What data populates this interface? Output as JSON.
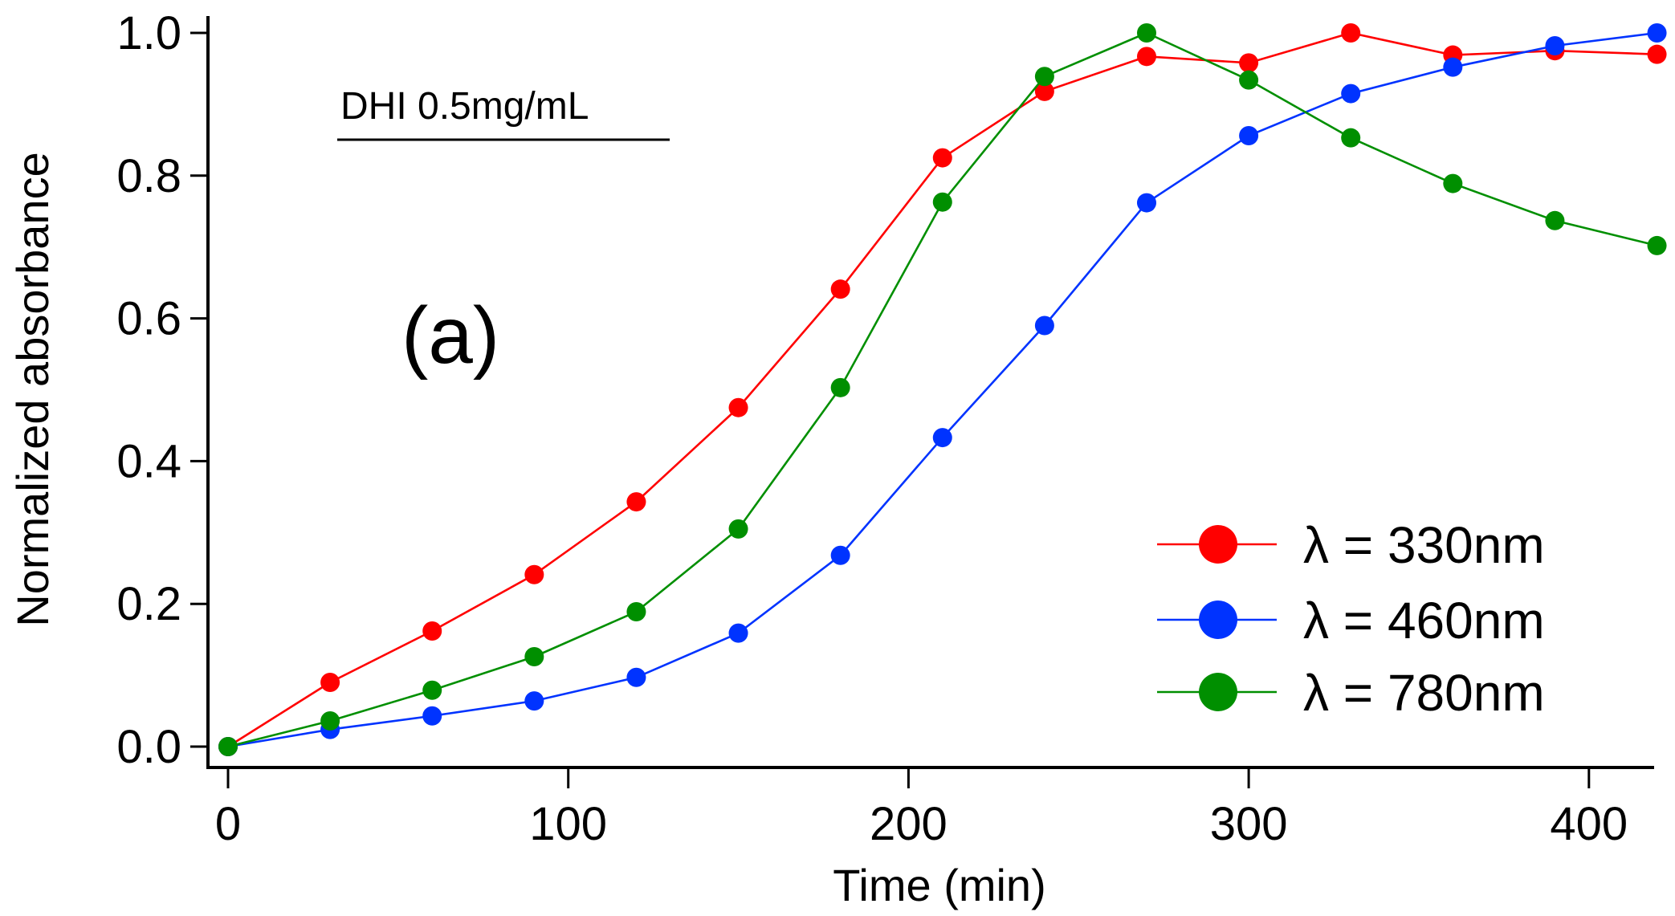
{
  "chart_data": {
    "type": "line",
    "title": "",
    "xlabel": "Time (min)",
    "ylabel": "Normalized absorbance",
    "xlim": [
      0,
      420
    ],
    "ylim": [
      0,
      1.0
    ],
    "xticks": [
      0,
      100,
      200,
      300,
      400
    ],
    "xtick_labels": [
      "0",
      "100",
      "200",
      "300",
      "400"
    ],
    "yticks": [
      0,
      0.2,
      0.4,
      0.6,
      0.8,
      1.0
    ],
    "ytick_labels": [
      "0.0",
      "0.2",
      "0.4",
      "0.6",
      "0.8",
      "1.0"
    ],
    "grid": false,
    "legend_position": "bottom-right",
    "annotations": {
      "sample": "DHI 0.5mg/mL",
      "panel": "(a)"
    },
    "x": [
      0,
      30,
      60,
      90,
      120,
      150,
      180,
      210,
      240,
      270,
      300,
      330,
      360,
      390,
      420
    ],
    "series": [
      {
        "name": "λ = 330nm",
        "color": "#ff0000",
        "values": [
          0,
          0.09,
          0.162,
          0.241,
          0.343,
          0.475,
          0.641,
          0.825,
          0.918,
          0.967,
          0.958,
          1.0,
          0.969,
          0.975,
          0.97
        ]
      },
      {
        "name": "λ = 460nm",
        "color": "#0033ff",
        "values": [
          0,
          0.024,
          0.043,
          0.064,
          0.097,
          0.159,
          0.268,
          0.433,
          0.59,
          0.762,
          0.856,
          0.915,
          0.952,
          0.982,
          1.0
        ]
      },
      {
        "name": "λ = 780nm",
        "color": "#008f00",
        "values": [
          0,
          0.036,
          0.079,
          0.126,
          0.189,
          0.305,
          0.503,
          0.763,
          0.939,
          1.0,
          0.934,
          0.853,
          0.789,
          0.737,
          0.702
        ]
      }
    ]
  }
}
